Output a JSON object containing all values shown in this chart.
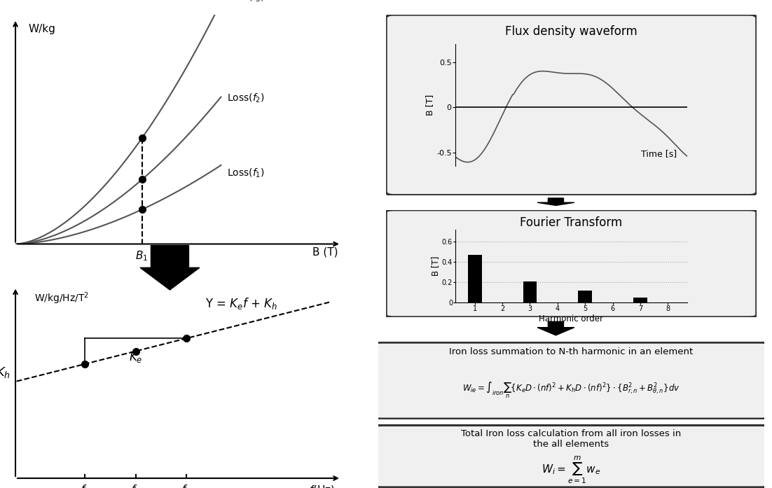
{
  "bg_color": "#ffffff",
  "arrow_color": "#222222",
  "box_border_color": "#333333",
  "text_color": "#111111",
  "curve_color": "#555555",
  "dot_color": "#111111",
  "bar_color": "#111111",
  "waveform_color": "#555555",
  "dashed_color": "#555555",
  "box1_title": "Flux density waveform",
  "box2_title": "Fourier Transform",
  "box3_title": "Iron loss summation to N-th harmonic in an element",
  "box3_formula": "$W_{ie} = \\int_{iron} \\sum_{n} \\{K_e D \\cdot (nf)^2 + K_h D \\cdot (nf)^2\\} \\cdot \\{B_{r,n}^2 + B_{\\theta,n}^2\\} dv$",
  "box4_title": "Total Iron loss calculation from all iron losses in\nthe all elements",
  "box4_formula": "$W_i = \\sum_{e=1}^{m} w_e$",
  "bar_values": [
    0.47,
    0.0,
    0.21,
    0.0,
    0.12,
    0.0,
    0.05,
    0.0
  ],
  "bar_xticks": [
    "1",
    "2",
    "3",
    "4",
    "5",
    "6",
    "7",
    "8"
  ],
  "bar_yticks": [
    "0",
    "0.2",
    "0.4",
    "0.6"
  ],
  "bar_ylabel": "B [T]",
  "bar_xlabel": "Harmonic order",
  "waveform_ylabel": "B [T]",
  "waveform_xlabel": "Time [s]",
  "waveform_yticks": [
    "-0.5",
    "0",
    "0.5"
  ]
}
